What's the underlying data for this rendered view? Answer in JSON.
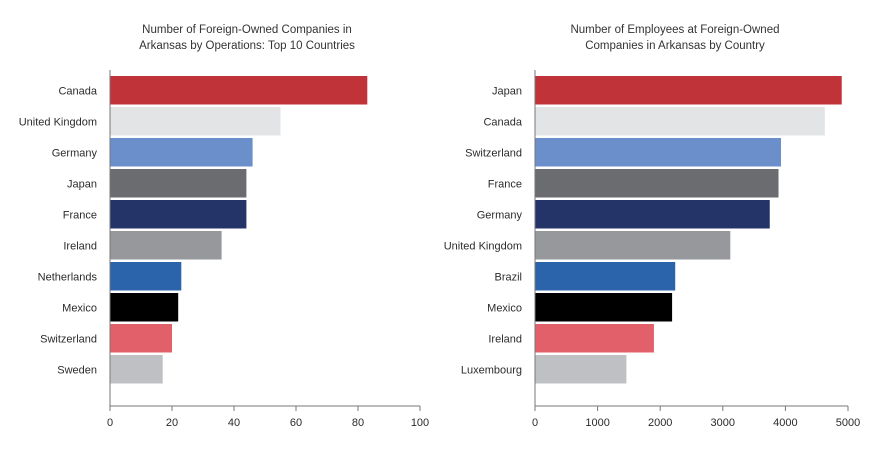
{
  "chart_data": [
    {
      "type": "bar",
      "orientation": "horizontal",
      "title_lines": [
        "Number of Foreign-Owned Companies in",
        "Arkansas by Operations: Top 10 Countries"
      ],
      "categories": [
        "Canada",
        "United Kingdom",
        "Germany",
        "Japan",
        "France",
        "Ireland",
        "Netherlands",
        "Mexico",
        "Switzerland",
        "Sweden"
      ],
      "values": [
        83,
        55,
        46,
        44,
        44,
        36,
        23,
        22,
        20,
        17
      ],
      "colors": [
        "#bf3339",
        "#e3e4e6",
        "#6b8fca",
        "#6b6c70",
        "#243468",
        "#97989c",
        "#2c64ab",
        "#000000",
        "#e2606a",
        "#bfc0c3"
      ],
      "xlim": [
        0,
        100
      ],
      "xticks": [
        0,
        20,
        40,
        60,
        80,
        100
      ],
      "grid": false
    },
    {
      "type": "bar",
      "orientation": "horizontal",
      "title_lines": [
        "Number of Employees at Foreign-Owned",
        "Companies in Arkansas by Country"
      ],
      "categories": [
        "Japan",
        "Canada",
        "Switzerland",
        "France",
        "Germany",
        "United Kingdom",
        "Brazil",
        "Mexico",
        "Ireland",
        "Luxembourg"
      ],
      "values": [
        4900,
        4630,
        3930,
        3890,
        3750,
        3120,
        2240,
        2190,
        1900,
        1460
      ],
      "colors": [
        "#bf3339",
        "#e3e4e6",
        "#6b8fca",
        "#6b6c70",
        "#243468",
        "#97989c",
        "#2c64ab",
        "#000000",
        "#e2606a",
        "#bfc0c3"
      ],
      "xlim": [
        0,
        5000
      ],
      "xticks": [
        0,
        1000,
        2000,
        3000,
        4000,
        5000
      ],
      "grid": false
    }
  ]
}
